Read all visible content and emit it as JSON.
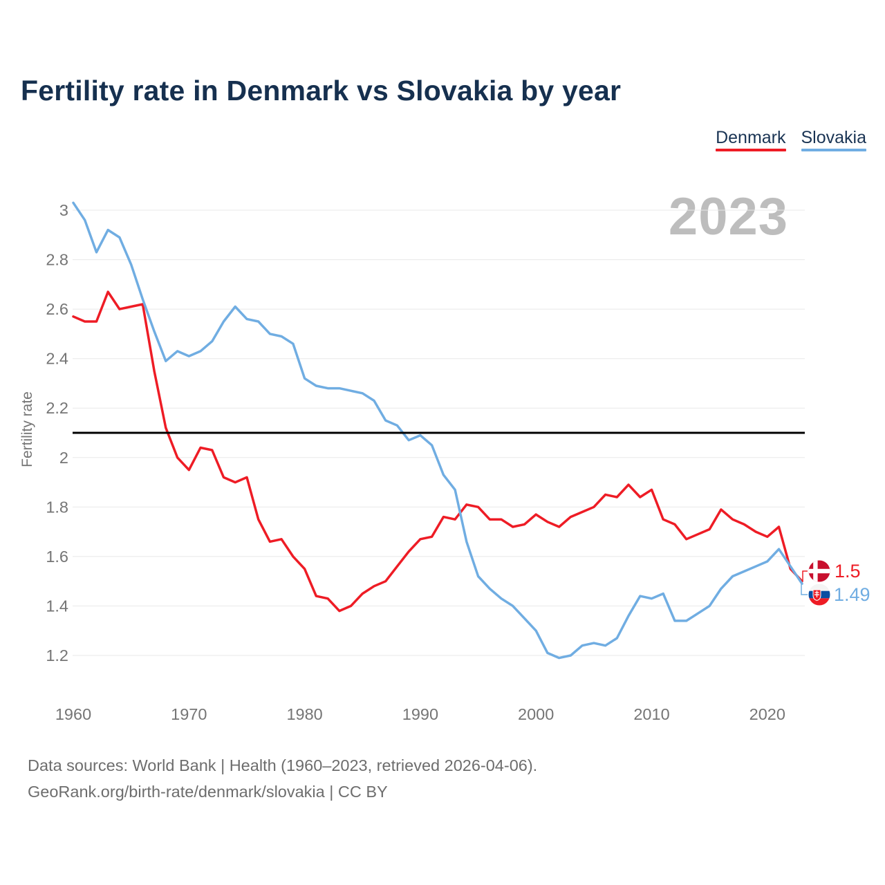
{
  "title": "Fertility rate in Denmark vs Slovakia by year",
  "watermark": "2023",
  "footer": {
    "line1": "Data sources: World Bank | Health (1960–2023, retrieved 2026-04-06).",
    "line2": "GeoRank.org/birth-rate/denmark/slovakia | CC BY"
  },
  "chart_data": {
    "type": "line",
    "title": "Fertility rate in Denmark vs Slovakia by year",
    "xlabel": "",
    "ylabel": "Fertility rate",
    "xlim": [
      1960,
      2023
    ],
    "ylim": [
      1.15,
      3.05
    ],
    "grid": true,
    "legend_position": "top-right",
    "x_ticks": [
      1960,
      1970,
      1980,
      1990,
      2000,
      2010,
      2020
    ],
    "y_ticks": [
      3,
      2.8,
      2.6,
      2.4,
      2.2,
      2,
      1.8,
      1.6,
      1.4,
      1.2
    ],
    "replacement_line_value": 2.1,
    "replacement_line_color": "#000000",
    "gridline_color": "#e8e8e8",
    "tick_color": "#757575",
    "x": [
      1960,
      1961,
      1962,
      1963,
      1964,
      1965,
      1966,
      1967,
      1968,
      1969,
      1970,
      1971,
      1972,
      1973,
      1974,
      1975,
      1976,
      1977,
      1978,
      1979,
      1980,
      1981,
      1982,
      1983,
      1984,
      1985,
      1986,
      1987,
      1988,
      1989,
      1990,
      1991,
      1992,
      1993,
      1994,
      1995,
      1996,
      1997,
      1998,
      1999,
      2000,
      2001,
      2002,
      2003,
      2004,
      2005,
      2006,
      2007,
      2008,
      2009,
      2010,
      2011,
      2012,
      2013,
      2014,
      2015,
      2016,
      2017,
      2018,
      2019,
      2020,
      2021,
      2022,
      2023
    ],
    "series": [
      {
        "id": "denmark",
        "name": "Denmark",
        "color": "#ee1c25",
        "end_label": "1.5",
        "end_year": 2023,
        "values": [
          2.57,
          2.55,
          2.55,
          2.67,
          2.6,
          2.61,
          2.62,
          2.35,
          2.12,
          2.0,
          1.95,
          2.04,
          2.03,
          1.92,
          1.9,
          1.92,
          1.75,
          1.66,
          1.67,
          1.6,
          1.55,
          1.44,
          1.43,
          1.38,
          1.4,
          1.45,
          1.48,
          1.5,
          1.56,
          1.62,
          1.67,
          1.68,
          1.76,
          1.75,
          1.81,
          1.8,
          1.75,
          1.75,
          1.72,
          1.73,
          1.77,
          1.74,
          1.72,
          1.76,
          1.78,
          1.8,
          1.85,
          1.84,
          1.89,
          1.84,
          1.87,
          1.75,
          1.73,
          1.67,
          1.69,
          1.71,
          1.79,
          1.75,
          1.73,
          1.7,
          1.68,
          1.72,
          1.55,
          1.5
        ]
      },
      {
        "id": "slovakia",
        "name": "Slovakia",
        "color": "#70ade2",
        "end_label": "1.49",
        "end_year": 2023,
        "values": [
          3.03,
          2.96,
          2.83,
          2.92,
          2.89,
          2.78,
          2.64,
          2.51,
          2.39,
          2.43,
          2.41,
          2.43,
          2.47,
          2.55,
          2.61,
          2.56,
          2.55,
          2.5,
          2.49,
          2.46,
          2.32,
          2.29,
          2.28,
          2.28,
          2.27,
          2.26,
          2.23,
          2.15,
          2.13,
          2.07,
          2.09,
          2.05,
          1.93,
          1.87,
          1.66,
          1.52,
          1.47,
          1.43,
          1.4,
          1.35,
          1.3,
          1.21,
          1.19,
          1.2,
          1.24,
          1.25,
          1.24,
          1.27,
          1.36,
          1.44,
          1.43,
          1.45,
          1.34,
          1.34,
          1.37,
          1.4,
          1.47,
          1.52,
          1.54,
          1.56,
          1.58,
          1.63,
          1.56,
          1.49
        ]
      }
    ]
  }
}
